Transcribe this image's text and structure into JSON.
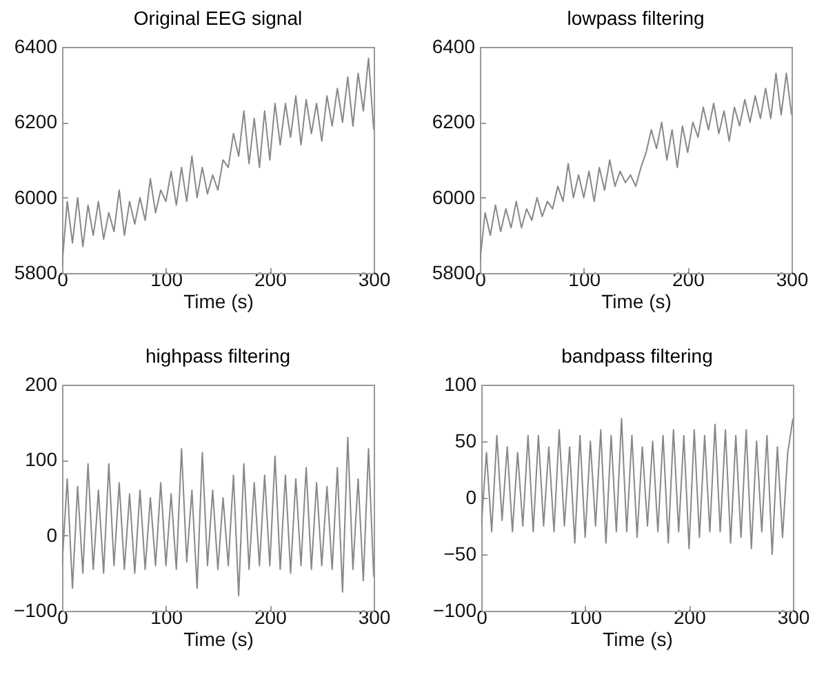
{
  "chart_data": [
    {
      "type": "line",
      "title": "Original EEG signal",
      "xlabel": "Time (s)",
      "xlim": [
        0,
        300
      ],
      "xticks": [
        0,
        100,
        200,
        300
      ],
      "ylim": [
        5800,
        6400
      ],
      "yticks": [
        5800,
        6000,
        6200,
        6400
      ],
      "grid": false,
      "x": [
        0,
        5,
        10,
        15,
        20,
        25,
        30,
        35,
        40,
        45,
        50,
        55,
        60,
        65,
        70,
        75,
        80,
        85,
        90,
        95,
        100,
        105,
        110,
        115,
        120,
        125,
        130,
        135,
        140,
        145,
        150,
        155,
        160,
        165,
        170,
        175,
        180,
        185,
        190,
        195,
        200,
        205,
        210,
        215,
        220,
        225,
        230,
        235,
        240,
        245,
        250,
        255,
        260,
        265,
        270,
        275,
        280,
        285,
        290,
        295,
        300
      ],
      "series": [
        {
          "color": "#888888",
          "values": [
            5820,
            5990,
            5880,
            6000,
            5870,
            5980,
            5900,
            5990,
            5890,
            5960,
            5910,
            6020,
            5900,
            5990,
            5930,
            6000,
            5940,
            6050,
            5960,
            6020,
            5990,
            6070,
            5980,
            6080,
            5990,
            6110,
            6000,
            6080,
            6010,
            6060,
            6020,
            6100,
            6080,
            6170,
            6110,
            6230,
            6090,
            6210,
            6080,
            6230,
            6100,
            6250,
            6140,
            6250,
            6160,
            6270,
            6140,
            6260,
            6170,
            6250,
            6150,
            6270,
            6190,
            6290,
            6200,
            6320,
            6190,
            6330,
            6230,
            6370,
            6180
          ]
        }
      ]
    },
    {
      "type": "line",
      "title": "lowpass filtering",
      "xlabel": "Time (s)",
      "xlim": [
        0,
        300
      ],
      "xticks": [
        0,
        100,
        200,
        300
      ],
      "ylim": [
        5800,
        6400
      ],
      "yticks": [
        5800,
        6000,
        6200,
        6400
      ],
      "grid": false,
      "x": [
        0,
        5,
        10,
        15,
        20,
        25,
        30,
        35,
        40,
        45,
        50,
        55,
        60,
        65,
        70,
        75,
        80,
        85,
        90,
        95,
        100,
        105,
        110,
        115,
        120,
        125,
        130,
        135,
        140,
        145,
        150,
        155,
        160,
        165,
        170,
        175,
        180,
        185,
        190,
        195,
        200,
        205,
        210,
        215,
        220,
        225,
        230,
        235,
        240,
        245,
        250,
        255,
        260,
        265,
        270,
        275,
        280,
        285,
        290,
        295,
        300
      ],
      "series": [
        {
          "color": "#888888",
          "values": [
            5830,
            5960,
            5900,
            5980,
            5910,
            5970,
            5920,
            5990,
            5920,
            5970,
            5940,
            6000,
            5950,
            5990,
            5970,
            6030,
            5990,
            6090,
            6000,
            6060,
            6000,
            6070,
            5990,
            6080,
            6020,
            6100,
            6030,
            6070,
            6040,
            6060,
            6030,
            6080,
            6120,
            6180,
            6130,
            6200,
            6100,
            6180,
            6080,
            6190,
            6120,
            6200,
            6160,
            6240,
            6180,
            6250,
            6170,
            6230,
            6150,
            6240,
            6190,
            6260,
            6200,
            6270,
            6210,
            6290,
            6210,
            6330,
            6220,
            6330,
            6220
          ]
        }
      ]
    },
    {
      "type": "line",
      "title": "highpass filtering",
      "xlabel": "Time (s)",
      "xlim": [
        0,
        300
      ],
      "xticks": [
        0,
        100,
        200,
        300
      ],
      "ylim": [
        -100,
        200
      ],
      "yticks": [
        -100,
        0,
        100,
        200
      ],
      "grid": false,
      "x": [
        0,
        5,
        10,
        15,
        20,
        25,
        30,
        35,
        40,
        45,
        50,
        55,
        60,
        65,
        70,
        75,
        80,
        85,
        90,
        95,
        100,
        105,
        110,
        115,
        120,
        125,
        130,
        135,
        140,
        145,
        150,
        155,
        160,
        165,
        170,
        175,
        180,
        185,
        190,
        195,
        200,
        205,
        210,
        215,
        220,
        225,
        230,
        235,
        240,
        245,
        250,
        255,
        260,
        265,
        270,
        275,
        280,
        285,
        290,
        295,
        300
      ],
      "series": [
        {
          "color": "#888888",
          "values": [
            -40,
            75,
            -70,
            65,
            -50,
            95,
            -45,
            60,
            -50,
            95,
            -40,
            70,
            -45,
            55,
            -50,
            60,
            -45,
            50,
            -40,
            70,
            -40,
            55,
            -45,
            115,
            -35,
            60,
            -70,
            110,
            -40,
            60,
            -45,
            50,
            -40,
            80,
            -80,
            95,
            -45,
            70,
            -40,
            80,
            -40,
            105,
            -45,
            80,
            -50,
            75,
            -40,
            90,
            -45,
            70,
            -40,
            65,
            -45,
            90,
            -75,
            130,
            -45,
            75,
            -60,
            115,
            -55
          ]
        }
      ]
    },
    {
      "type": "line",
      "title": "bandpass filtering",
      "xlabel": "Time (s)",
      "xlim": [
        0,
        300
      ],
      "xticks": [
        0,
        100,
        200,
        300
      ],
      "ylim": [
        -100,
        100
      ],
      "yticks": [
        -100,
        -50,
        0,
        50,
        100
      ],
      "grid": false,
      "x": [
        0,
        5,
        10,
        15,
        20,
        25,
        30,
        35,
        40,
        45,
        50,
        55,
        60,
        65,
        70,
        75,
        80,
        85,
        90,
        95,
        100,
        105,
        110,
        115,
        120,
        125,
        130,
        135,
        140,
        145,
        150,
        155,
        160,
        165,
        170,
        175,
        180,
        185,
        190,
        195,
        200,
        205,
        210,
        215,
        220,
        225,
        230,
        235,
        240,
        245,
        250,
        255,
        260,
        265,
        270,
        275,
        280,
        285,
        290,
        295,
        300
      ],
      "series": [
        {
          "color": "#888888",
          "values": [
            -25,
            40,
            -30,
            55,
            -20,
            45,
            -30,
            40,
            -25,
            55,
            -30,
            55,
            -25,
            45,
            -30,
            60,
            -25,
            45,
            -40,
            55,
            -35,
            50,
            -25,
            60,
            -40,
            55,
            -30,
            70,
            -30,
            55,
            -35,
            45,
            -25,
            50,
            -30,
            55,
            -40,
            60,
            -30,
            55,
            -45,
            60,
            -35,
            55,
            -30,
            65,
            -30,
            60,
            -40,
            55,
            -35,
            60,
            -45,
            50,
            -30,
            55,
            -50,
            45,
            -35,
            40,
            70
          ]
        }
      ]
    }
  ]
}
